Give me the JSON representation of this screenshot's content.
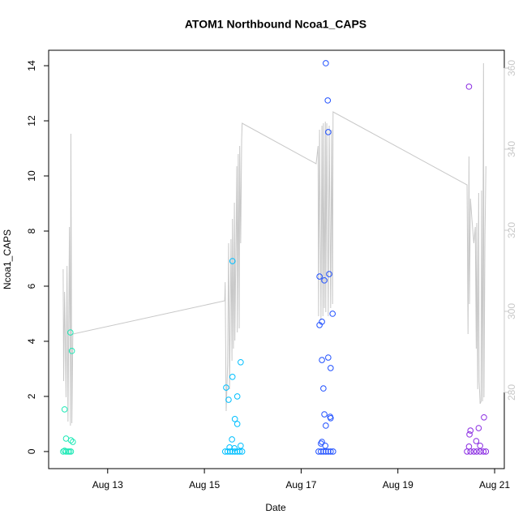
{
  "chart_data": {
    "type": "scatter",
    "title": "ATOM1 Northbound Ncoa1_CAPS",
    "xlabel": "Date",
    "ylabel": "Ncoa1_CAPS",
    "xlim": [
      11.78,
      21.2
    ],
    "xticks": [
      {
        "value": 13,
        "label": "Aug 13"
      },
      {
        "value": 15,
        "label": "Aug 15"
      },
      {
        "value": 17,
        "label": "Aug 17"
      },
      {
        "value": 19,
        "label": "Aug 19"
      },
      {
        "value": 21,
        "label": "Aug 21"
      }
    ],
    "ylim": [
      -0.62,
      14.56
    ],
    "yticks": [
      0,
      2,
      4,
      6,
      8,
      10,
      12,
      14
    ],
    "y2lim": [
      261.2,
      364.4
    ],
    "y2ticks": [
      280,
      300,
      320,
      340,
      360
    ],
    "y2_color": "#c8c8c8",
    "series": [
      {
        "type": "line",
        "axis": "y2",
        "color": "#c8c8c8",
        "x": [
          12.08,
          12.09,
          12.11,
          12.14,
          12.16,
          12.18,
          12.21,
          12.23,
          12.24,
          12.26,
          12.28,
          15.42,
          15.43,
          15.45,
          15.48,
          15.5,
          15.52,
          15.55,
          15.57,
          15.58,
          15.6,
          15.62,
          15.63,
          15.67,
          15.68,
          15.7,
          15.72,
          15.73,
          15.75,
          15.77,
          15.78,
          17.31,
          17.35,
          17.36,
          17.38,
          17.41,
          17.43,
          17.45,
          17.46,
          17.48,
          17.5,
          17.51,
          17.53,
          17.56,
          17.58,
          17.61,
          17.63,
          17.65,
          17.66,
          20.43,
          20.45,
          20.47,
          20.48,
          20.5,
          20.53,
          20.57,
          20.6,
          20.62,
          20.63,
          20.65,
          20.67,
          20.68,
          20.7,
          20.72,
          20.73,
          20.75,
          20.77,
          20.78,
          20.8,
          20.82
        ],
        "values": [
          310.4,
          282.8,
          304.8,
          278.8,
          311.2,
          272.8,
          320.8,
          271.8,
          343.8,
          272.4,
          294.4,
          302.6,
          307.2,
          275.4,
          286.8,
          316.8,
          280.8,
          317.8,
          287.8,
          322.8,
          290.8,
          326.8,
          292.8,
          335.8,
          294.8,
          338.8,
          295.8,
          340.8,
          316.8,
          342.4,
          346.4,
          336.4,
          340.8,
          298.8,
          344.8,
          297.8,
          345.8,
          298.8,
          346.4,
          300.8,
          346.8,
          299.8,
          346.4,
          298.8,
          345.8,
          300.8,
          344.8,
          301.8,
          349.2,
          331.2,
          294.4,
          338.2,
          301.8,
          327.8,
          322.8,
          316.8,
          320.8,
          290.8,
          321.8,
          280.8,
          329.2,
          282.8,
          277.2,
          277.8,
          329.8,
          277.8,
          361.2,
          278.8,
          318.8,
          335.8
        ]
      },
      {
        "type": "scatter",
        "color": "#1de9b6",
        "x": [
          12.11,
          12.14,
          12.23,
          12.26,
          12.24,
          12.28,
          12.08,
          12.11,
          12.14,
          12.18,
          12.21,
          12.24
        ],
        "values": [
          1.53,
          0.47,
          4.32,
          3.65,
          0.41,
          0.35,
          0,
          0.03,
          0,
          0,
          0,
          0
        ]
      },
      {
        "type": "scatter",
        "color": "#00bfff",
        "x": [
          15.58,
          15.58,
          15.45,
          15.5,
          15.68,
          15.75,
          15.63,
          15.68,
          15.57,
          15.75,
          15.43,
          15.48,
          15.53,
          15.58,
          15.63,
          15.68,
          15.73,
          15.78,
          15.52,
          15.62
        ],
        "values": [
          6.91,
          2.71,
          2.32,
          1.88,
          2.0,
          3.24,
          1.18,
          1.0,
          0.44,
          0.21,
          0,
          0,
          0,
          0,
          0,
          0,
          0,
          0,
          0.15,
          0.12
        ]
      },
      {
        "type": "scatter",
        "color": "#2050ff",
        "x": [
          17.51,
          17.55,
          17.56,
          17.38,
          17.48,
          17.58,
          17.65,
          17.38,
          17.43,
          17.43,
          17.56,
          17.61,
          17.46,
          17.48,
          17.6,
          17.61,
          17.51,
          17.41,
          17.5,
          17.43,
          17.36,
          17.41,
          17.46,
          17.51,
          17.56,
          17.61,
          17.66
        ],
        "values": [
          14.09,
          12.74,
          11.59,
          6.35,
          6.21,
          6.44,
          5.0,
          4.59,
          4.71,
          3.32,
          3.41,
          3.03,
          2.29,
          1.35,
          1.26,
          1.21,
          0.94,
          0.29,
          0.21,
          0.35,
          0,
          0,
          0,
          0,
          0,
          0,
          0
        ]
      },
      {
        "type": "scatter",
        "color": "#8a2be2",
        "x": [
          20.47,
          20.78,
          20.67,
          20.5,
          20.48,
          20.62,
          20.47,
          20.7,
          20.43,
          20.5,
          20.57,
          20.63,
          20.7,
          20.77,
          20.82
        ],
        "values": [
          13.24,
          1.24,
          0.85,
          0.76,
          0.62,
          0.38,
          0.18,
          0.21,
          0,
          0,
          0,
          0,
          0,
          0,
          0
        ]
      }
    ]
  }
}
